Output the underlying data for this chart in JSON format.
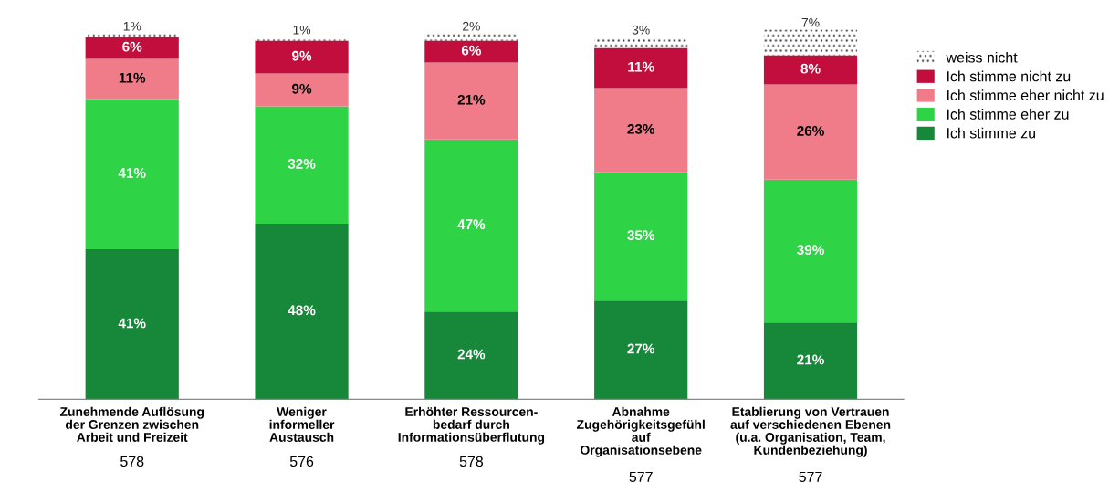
{
  "chart_data": {
    "type": "bar",
    "stacked": true,
    "legend": "top right",
    "categories": [
      "Zunehmende Auflösung\nder Grenzen zwischen\nArbeit und Freizeit",
      "Weniger\ninformeller\nAustausch",
      "Erhöhter Ressourcen-\nbedarf durch\nInformationsüberflutung",
      "Abnahme\nZugehörigkeitsgefühl\nauf\nOrganisationsebene",
      "Etablierung von Vertrauen\nauf verschiedenen Ebenen\n(u.a. Organisation, Team,\nKundenbeziehung)"
    ],
    "annotations": [
      "578",
      "576",
      "578",
      "577",
      "577"
    ],
    "series": [
      {
        "name": "Ich stimme zu",
        "color": "#17873a",
        "values": [
          41,
          48,
          24,
          27,
          21
        ],
        "value_labels": [
          "41%",
          "48%",
          "24%",
          "27%",
          "21%"
        ]
      },
      {
        "name": "Ich stimme eher zu",
        "color": "#2ed446",
        "values": [
          41,
          32,
          47,
          35,
          39
        ],
        "value_labels": [
          "41%",
          "32%",
          "47%",
          "35%",
          "39%"
        ]
      },
      {
        "name": "Ich stimme eher nicht zu",
        "color": "#f07c8a",
        "values": [
          11,
          9,
          21,
          23,
          26
        ],
        "value_labels": [
          "11%",
          "9%",
          "21%",
          "23%",
          "26%"
        ]
      },
      {
        "name": "Ich stimme nicht zu",
        "color": "#c20e3c",
        "values": [
          6,
          9,
          6,
          11,
          8
        ],
        "value_labels": [
          "6%",
          "9%",
          "6%",
          "11%",
          "8%"
        ]
      },
      {
        "name": "weiss nicht",
        "color": "#ffffff",
        "values": [
          1,
          1,
          2,
          3,
          7
        ],
        "value_labels": [
          "1%",
          "1%",
          "2%",
          "3%",
          "7%"
        ]
      }
    ]
  }
}
